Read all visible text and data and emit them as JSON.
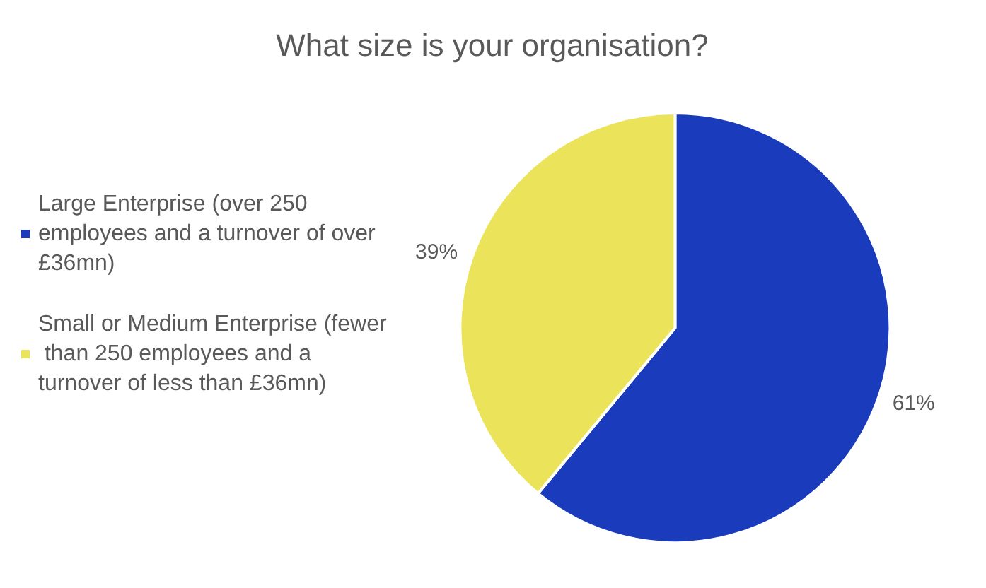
{
  "chart_data": {
    "type": "pie",
    "title": "What size is your organisation?",
    "categories": [
      "Large Enterprise (over 250 employees and a turnover of over £36mn)",
      "Small or Medium Enterprise (fewer than 250 employees and a turnover of less than £36mn)"
    ],
    "values": [
      61,
      39
    ],
    "colors": [
      "#1a3bbb",
      "#ebe35a"
    ],
    "value_labels": [
      "61%",
      "39%"
    ],
    "legend": "left"
  }
}
